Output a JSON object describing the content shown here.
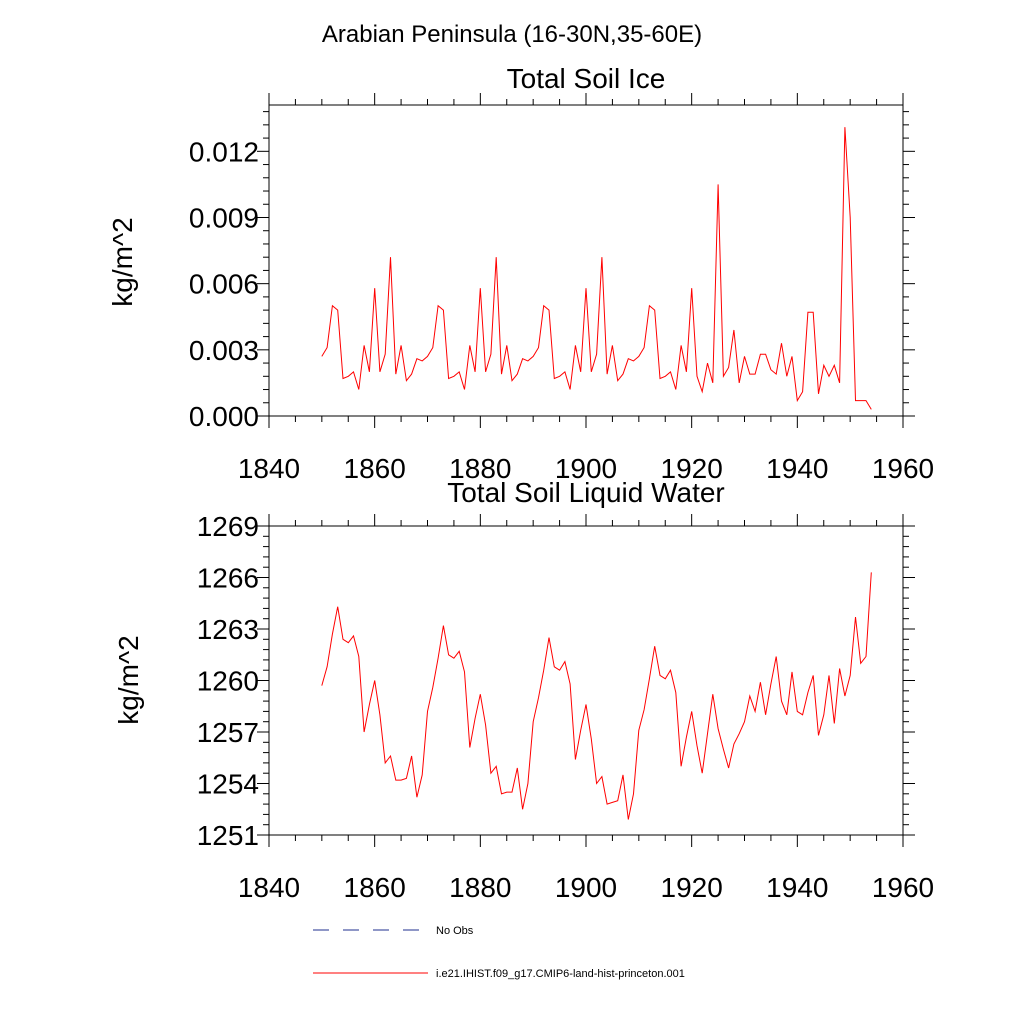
{
  "figure": {
    "region_title": "Arabian Peninsula (16-30N,35-60E)"
  },
  "colors": {
    "model": "#ff0000",
    "obs": "#1f2f8f",
    "axis": "#000000"
  },
  "legend": {
    "placement": "bottom",
    "entries": [
      {
        "label": "No Obs",
        "style": "dashed",
        "color": "#1f2f8f"
      },
      {
        "label": "i.e21.IHIST.f09_g17.CMIP6-land-hist-princeton.001",
        "style": "solid",
        "color": "#ff0000"
      }
    ]
  },
  "chart_data": [
    {
      "type": "line",
      "title": "Total Soil Ice",
      "xlabel": "",
      "ylabel": "kg/m^2",
      "xlim": [
        1840,
        1960
      ],
      "ylim": [
        0.0,
        0.0141
      ],
      "xticks": [
        1840,
        1860,
        1880,
        1900,
        1920,
        1940,
        1960
      ],
      "xtick_labels": [
        "1840",
        "1860",
        "1880",
        "1900",
        "1920",
        "1940",
        "1960"
      ],
      "yticks": [
        0.0,
        0.003,
        0.006,
        0.009,
        0.012
      ],
      "ytick_labels": [
        "0.000",
        "0.003",
        "0.006",
        "0.009",
        "0.012"
      ],
      "grid": false,
      "series": [
        {
          "color": "#ff0000",
          "x": [
            1850,
            1851,
            1852,
            1853,
            1854,
            1855,
            1856,
            1857,
            1858,
            1859,
            1860,
            1861,
            1862,
            1863,
            1864,
            1865,
            1866,
            1867,
            1868,
            1869,
            1870,
            1871,
            1872,
            1873,
            1874,
            1875,
            1876,
            1877,
            1878,
            1879,
            1880,
            1881,
            1882,
            1883,
            1884,
            1885,
            1886,
            1887,
            1888,
            1889,
            1890,
            1891,
            1892,
            1893,
            1894,
            1895,
            1896,
            1897,
            1898,
            1899,
            1900,
            1901,
            1902,
            1903,
            1904,
            1905,
            1906,
            1907,
            1908,
            1909,
            1910,
            1911,
            1912,
            1913,
            1914,
            1915,
            1916,
            1917,
            1918,
            1919,
            1920,
            1921,
            1922,
            1923,
            1924,
            1925,
            1926,
            1927,
            1928,
            1929,
            1930,
            1931,
            1932,
            1933,
            1934,
            1935,
            1936,
            1937,
            1938,
            1939,
            1940,
            1941,
            1942,
            1943,
            1944,
            1945,
            1946,
            1947,
            1948,
            1949,
            1950,
            1951,
            1952,
            1953,
            1954
          ],
          "values": [
            0.0027,
            0.0031,
            0.005,
            0.0048,
            0.0017,
            0.0018,
            0.002,
            0.0012,
            0.0032,
            0.002,
            0.0058,
            0.002,
            0.0028,
            0.0072,
            0.0019,
            0.0032,
            0.0016,
            0.0019,
            0.0026,
            0.0025,
            0.0027,
            0.0031,
            0.005,
            0.0048,
            0.0017,
            0.0018,
            0.002,
            0.0012,
            0.0032,
            0.002,
            0.0058,
            0.002,
            0.0028,
            0.0072,
            0.0019,
            0.0032,
            0.0016,
            0.0019,
            0.0026,
            0.0025,
            0.0027,
            0.0031,
            0.005,
            0.0048,
            0.0017,
            0.0018,
            0.002,
            0.0012,
            0.0032,
            0.002,
            0.0058,
            0.002,
            0.0028,
            0.0072,
            0.0019,
            0.0032,
            0.0016,
            0.0019,
            0.0026,
            0.0025,
            0.0027,
            0.0031,
            0.005,
            0.0048,
            0.0017,
            0.0018,
            0.002,
            0.0012,
            0.0032,
            0.002,
            0.0058,
            0.0018,
            0.0011,
            0.0024,
            0.0015,
            0.0105,
            0.0018,
            0.0022,
            0.0039,
            0.0015,
            0.0027,
            0.0019,
            0.0019,
            0.0028,
            0.0028,
            0.0021,
            0.0019,
            0.0033,
            0.0018,
            0.0027,
            0.0007,
            0.0011,
            0.0047,
            0.0047,
            0.001,
            0.0023,
            0.0018,
            0.0023,
            0.0015,
            0.0131,
            0.009,
            0.0007,
            0.0007,
            0.0007,
            0.0003
          ]
        }
      ]
    },
    {
      "type": "line",
      "title": "Total Soil Liquid Water",
      "xlabel": "",
      "ylabel": "kg/m^2",
      "xlim": [
        1840,
        1960
      ],
      "ylim": [
        1251,
        1269
      ],
      "xticks": [
        1840,
        1860,
        1880,
        1900,
        1920,
        1940,
        1960
      ],
      "xtick_labels": [
        "1840",
        "1860",
        "1880",
        "1900",
        "1920",
        "1940",
        "1960"
      ],
      "yticks": [
        1251,
        1254,
        1257,
        1260,
        1263,
        1266,
        1269
      ],
      "ytick_labels": [
        "1251",
        "1254",
        "1257",
        "1260",
        "1263",
        "1266",
        "1269"
      ],
      "grid": false,
      "series": [
        {
          "color": "#ff0000",
          "x": [
            1850,
            1851,
            1852,
            1853,
            1854,
            1855,
            1856,
            1857,
            1858,
            1859,
            1860,
            1861,
            1862,
            1863,
            1864,
            1865,
            1866,
            1867,
            1868,
            1869,
            1870,
            1871,
            1872,
            1873,
            1874,
            1875,
            1876,
            1877,
            1878,
            1879,
            1880,
            1881,
            1882,
            1883,
            1884,
            1885,
            1886,
            1887,
            1888,
            1889,
            1890,
            1891,
            1892,
            1893,
            1894,
            1895,
            1896,
            1897,
            1898,
            1899,
            1900,
            1901,
            1902,
            1903,
            1904,
            1905,
            1906,
            1907,
            1908,
            1909,
            1910,
            1911,
            1912,
            1913,
            1914,
            1915,
            1916,
            1917,
            1918,
            1919,
            1920,
            1921,
            1922,
            1923,
            1924,
            1925,
            1926,
            1927,
            1928,
            1929,
            1930,
            1931,
            1932,
            1933,
            1934,
            1935,
            1936,
            1937,
            1938,
            1939,
            1940,
            1941,
            1942,
            1943,
            1944,
            1945,
            1946,
            1947,
            1948,
            1949,
            1950,
            1951,
            1952,
            1953,
            1954
          ],
          "values": [
            1259.7,
            1260.8,
            1262.7,
            1264.3,
            1262.4,
            1262.2,
            1262.6,
            1261.4,
            1257.0,
            1258.6,
            1260.0,
            1258.0,
            1255.2,
            1255.6,
            1254.2,
            1254.2,
            1254.3,
            1255.6,
            1253.2,
            1254.5,
            1258.2,
            1259.6,
            1261.3,
            1263.2,
            1261.5,
            1261.3,
            1261.7,
            1260.5,
            1256.1,
            1257.8,
            1259.2,
            1257.4,
            1254.6,
            1255.0,
            1253.4,
            1253.5,
            1253.5,
            1254.9,
            1252.5,
            1254.0,
            1257.6,
            1259.0,
            1260.6,
            1262.5,
            1260.8,
            1260.6,
            1261.1,
            1259.8,
            1255.4,
            1257.1,
            1258.6,
            1256.6,
            1254.0,
            1254.4,
            1252.8,
            1252.9,
            1253.0,
            1254.5,
            1251.9,
            1253.4,
            1257.1,
            1258.3,
            1260.1,
            1262.0,
            1260.3,
            1260.1,
            1260.6,
            1259.3,
            1255.0,
            1256.7,
            1258.2,
            1256.2,
            1254.6,
            1256.9,
            1259.2,
            1257.2,
            1256.0,
            1254.9,
            1256.3,
            1256.9,
            1257.6,
            1259.1,
            1258.2,
            1259.9,
            1258.0,
            1259.8,
            1261.4,
            1258.8,
            1258.0,
            1260.5,
            1258.2,
            1258.0,
            1259.3,
            1260.3,
            1256.8,
            1258.0,
            1260.3,
            1257.5,
            1260.7,
            1259.1,
            1260.3,
            1263.7,
            1261.0,
            1261.4,
            1266.3
          ]
        }
      ]
    }
  ]
}
